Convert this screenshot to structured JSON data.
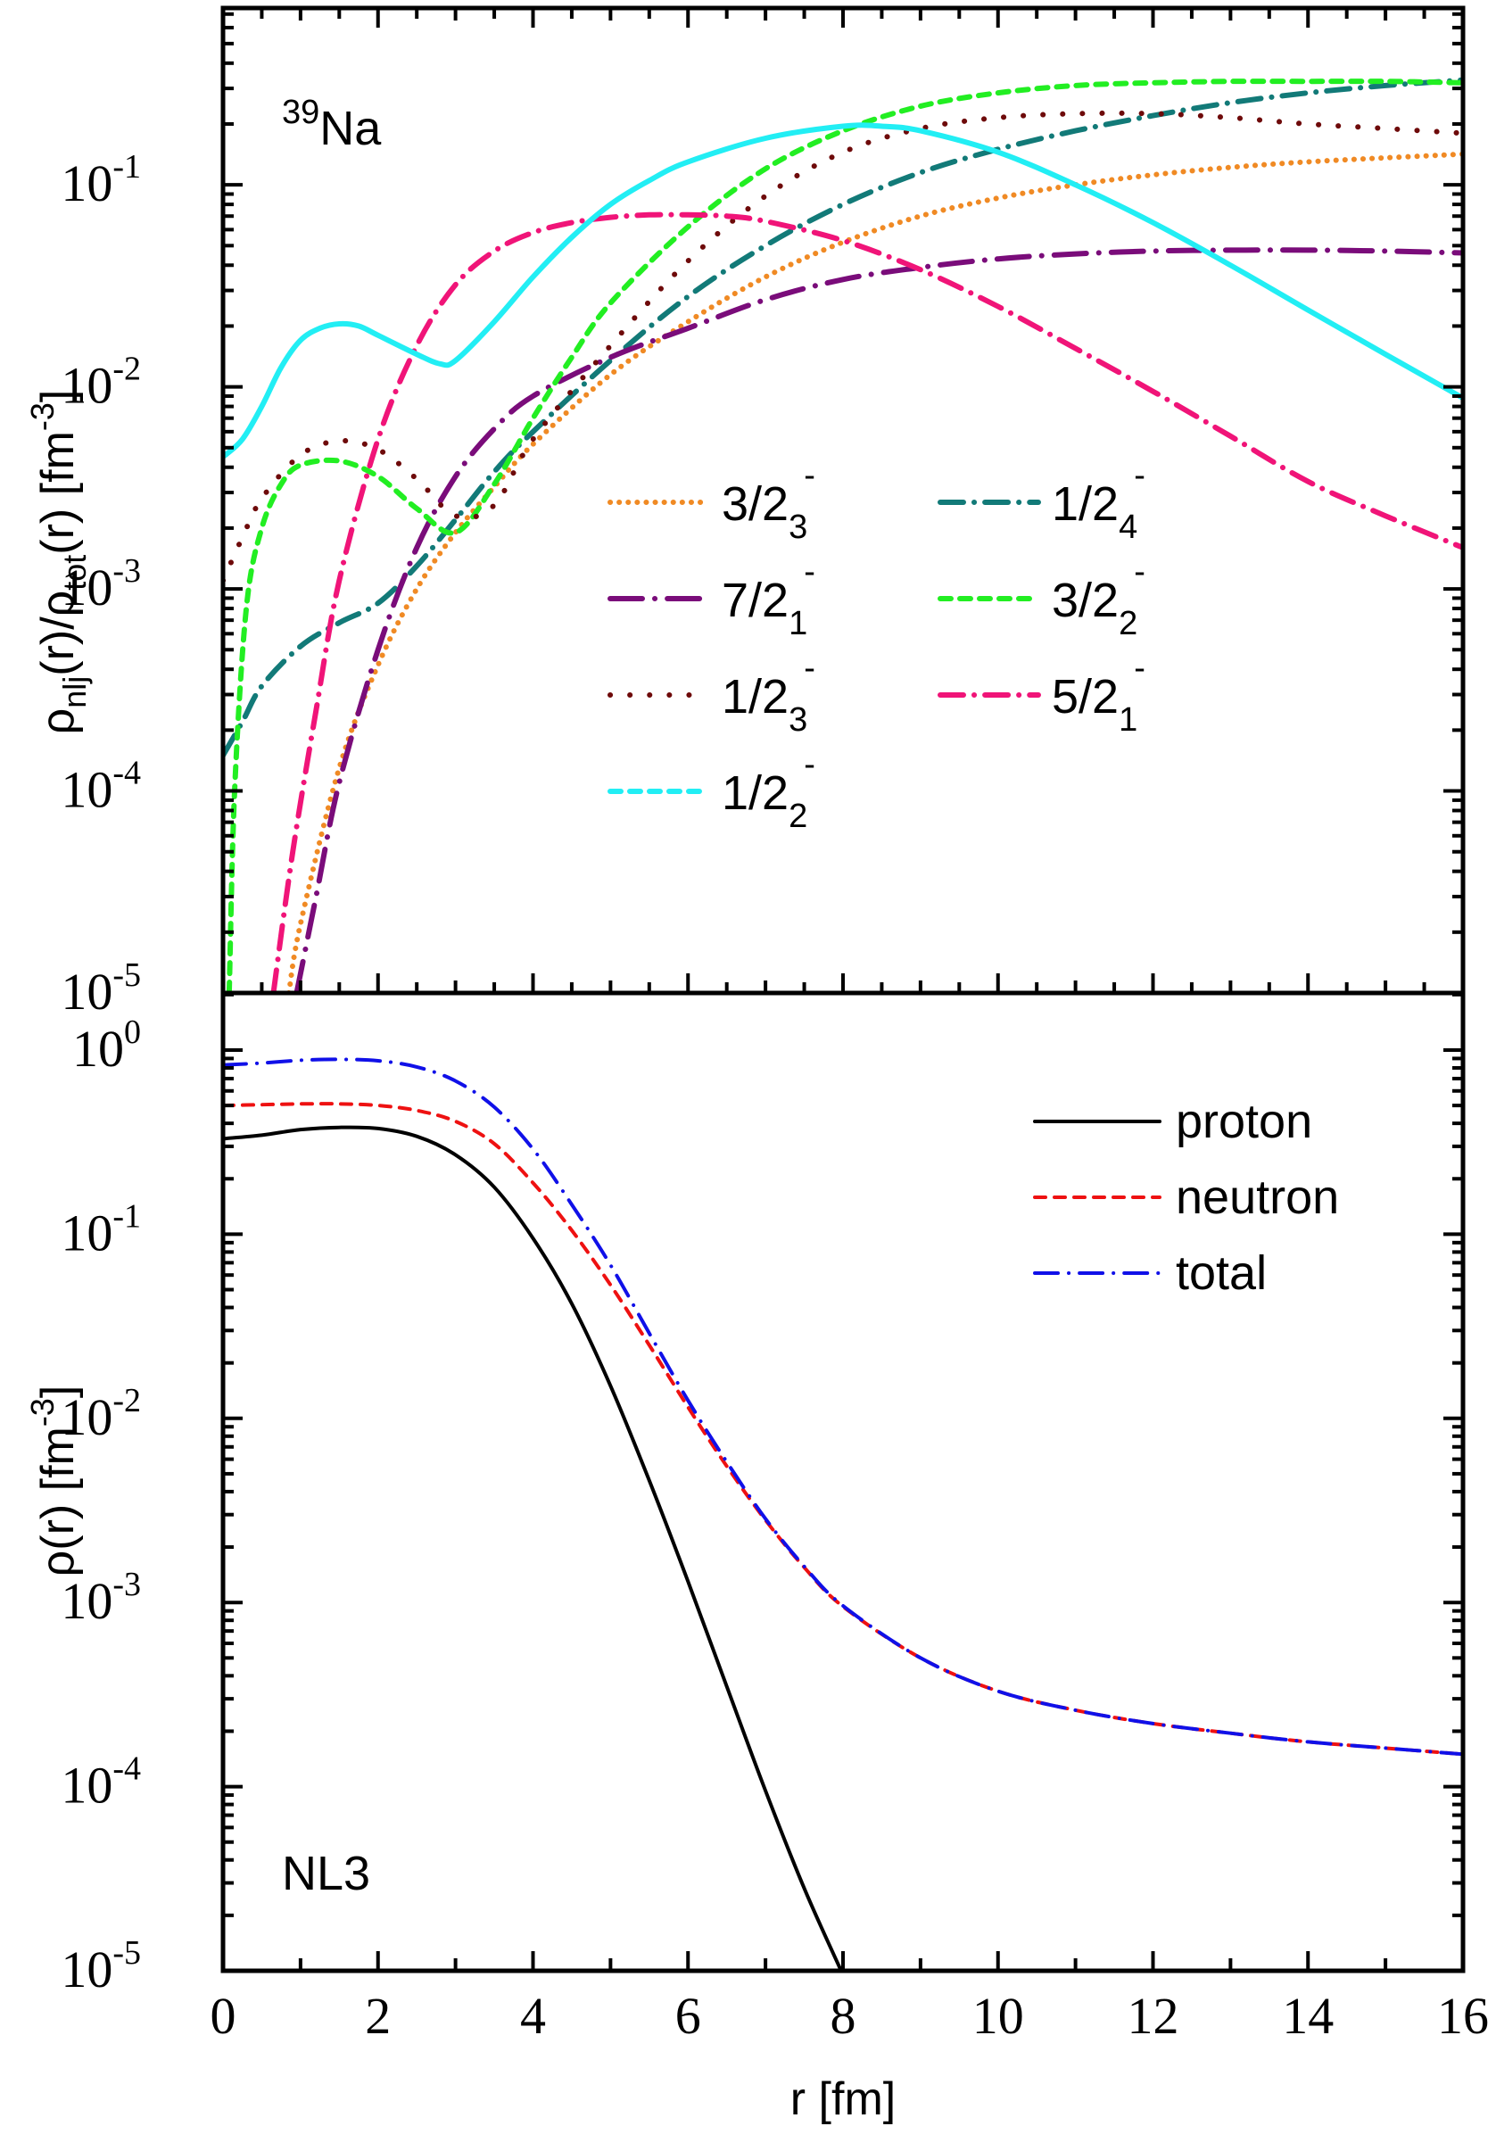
{
  "chart_data": [
    {
      "panel": "top",
      "type": "line",
      "annotation": {
        "mass_number": "39",
        "element": "Na"
      },
      "ylabel": {
        "main": "ρ",
        "sub1": "nlj",
        "mid": "(r)/ρ",
        "sub2": "tot",
        "tail": "(r) [fm",
        "sup": "-3",
        "end": "]"
      },
      "xlim": [
        0,
        16
      ],
      "ylim_log10": [
        -5,
        -0.125
      ],
      "yscale": "log",
      "y_ticks": [
        {
          "base": "10",
          "exp": "-1",
          "log": -1
        },
        {
          "base": "10",
          "exp": "-2",
          "log": -2
        },
        {
          "base": "10",
          "exp": "-3",
          "log": -3
        },
        {
          "base": "10",
          "exp": "-4",
          "log": -4
        },
        {
          "base": "10",
          "exp": "-5",
          "log": -5
        }
      ],
      "legend_placement": "center",
      "series": [
        {
          "name": "3/2_3^-",
          "label_main": "3/2",
          "label_sub": "3",
          "label_sup": "-",
          "color": "#F08A24",
          "style": "dotted",
          "legend_col": 0,
          "legend_row": 0,
          "x": [
            0.85,
            1.0,
            1.5,
            2.0,
            2.5,
            3.0,
            3.5,
            4.0,
            5.0,
            6.0,
            7.0,
            8.0,
            9.0,
            10.0,
            11.0,
            12.0,
            13.0,
            14.0,
            15.0,
            16.0
          ],
          "values": [
            1e-05,
            2.2e-05,
            0.00013,
            0.00042,
            0.001,
            0.0019,
            0.0032,
            0.0052,
            0.0115,
            0.021,
            0.035,
            0.052,
            0.07,
            0.086,
            0.1,
            0.112,
            0.122,
            0.13,
            0.136,
            0.142
          ]
        },
        {
          "name": "1/2_4^-",
          "label_main": "1/2",
          "label_sub": "4",
          "label_sup": "-",
          "color": "#127A78",
          "style": "dashdot",
          "legend_col": 1,
          "legend_row": 0,
          "x": [
            0.0,
            0.25,
            0.5,
            1.0,
            1.5,
            2.0,
            2.5,
            3.0,
            3.5,
            4.0,
            5.0,
            6.0,
            7.0,
            8.0,
            9.0,
            10.0,
            11.0,
            12.0,
            13.0,
            14.0,
            15.0,
            16.0
          ],
          "values": [
            0.00015,
            0.00022,
            0.00033,
            0.00052,
            0.00068,
            0.00085,
            0.0013,
            0.0022,
            0.0038,
            0.006,
            0.0135,
            0.028,
            0.05,
            0.08,
            0.115,
            0.15,
            0.185,
            0.22,
            0.255,
            0.285,
            0.31,
            0.33
          ]
        },
        {
          "name": "7/2_1^-",
          "label_main": "7/2",
          "label_sub": "1",
          "label_sup": "-",
          "color": "#7A0C7A",
          "style": "longdashdot",
          "legend_col": 0,
          "legend_row": 1,
          "x": [
            0.95,
            1.2,
            1.5,
            2.0,
            2.5,
            3.0,
            3.5,
            4.0,
            5.0,
            6.0,
            7.0,
            8.0,
            9.0,
            10.0,
            11.0,
            12.0,
            13.0,
            14.0,
            15.0,
            16.0
          ],
          "values": [
            1e-05,
            3e-05,
            0.00011,
            0.0005,
            0.0016,
            0.0036,
            0.0062,
            0.009,
            0.014,
            0.0195,
            0.027,
            0.034,
            0.039,
            0.043,
            0.0455,
            0.047,
            0.0475,
            0.0475,
            0.047,
            0.046
          ]
        },
        {
          "name": "3/2_2^-",
          "label_main": "3/2",
          "label_sub": "2",
          "label_sup": "-",
          "color": "#22EE22",
          "style": "dashed",
          "legend_col": 1,
          "legend_row": 1,
          "x": [
            0.08,
            0.15,
            0.3,
            0.5,
            0.75,
            1.0,
            1.5,
            2.0,
            2.5,
            3.0,
            3.5,
            4.0,
            4.5,
            5.0,
            6.0,
            7.0,
            8.0,
            9.0,
            10.0,
            11.0,
            12.0,
            13.0,
            14.0,
            15.0,
            16.0
          ],
          "values": [
            1e-05,
            0.0001,
            0.0008,
            0.002,
            0.0033,
            0.0041,
            0.0043,
            0.0036,
            0.0025,
            0.0019,
            0.0033,
            0.007,
            0.014,
            0.026,
            0.062,
            0.12,
            0.185,
            0.245,
            0.285,
            0.31,
            0.32,
            0.325,
            0.325,
            0.325,
            0.32
          ]
        },
        {
          "name": "1/2_3^-",
          "label_main": "1/2",
          "label_sub": "3",
          "label_sup": "-",
          "color": "#6E0A0A",
          "style": "sparse-dotted",
          "legend_col": 0,
          "legend_row": 2,
          "x": [
            0.0,
            0.25,
            0.5,
            1.0,
            1.5,
            2.0,
            2.5,
            3.0,
            3.5,
            4.0,
            5.0,
            6.0,
            7.0,
            8.0,
            9.0,
            10.0,
            11.0,
            12.0,
            13.0,
            14.0,
            15.0,
            16.0
          ],
          "values": [
            0.0011,
            0.0018,
            0.0028,
            0.0046,
            0.0054,
            0.0049,
            0.0035,
            0.0023,
            0.0026,
            0.0055,
            0.016,
            0.042,
            0.088,
            0.145,
            0.19,
            0.215,
            0.225,
            0.225,
            0.215,
            0.2,
            0.19,
            0.18
          ]
        },
        {
          "name": "5/2_1^-",
          "label_main": "5/2",
          "label_sub": "1",
          "label_sup": "-",
          "color": "#F01478",
          "style": "dashdot",
          "legend_col": 1,
          "legend_row": 2,
          "x": [
            0.65,
            0.9,
            1.2,
            1.5,
            2.0,
            2.5,
            3.0,
            3.5,
            4.0,
            4.5,
            5.0,
            5.5,
            6.0,
            6.5,
            7.0,
            8.0,
            9.0,
            10.0,
            11.0,
            12.0,
            13.0,
            14.0,
            15.0,
            16.0
          ],
          "values": [
            1e-05,
            5e-05,
            0.00025,
            0.0011,
            0.0055,
            0.016,
            0.032,
            0.047,
            0.058,
            0.065,
            0.069,
            0.071,
            0.071,
            0.07,
            0.066,
            0.053,
            0.038,
            0.025,
            0.0155,
            0.0095,
            0.0057,
            0.0034,
            0.0023,
            0.0016
          ]
        },
        {
          "name": "1/2_2^-",
          "label_main": "1/2",
          "label_sub": "2",
          "label_sup": "-",
          "color": "#22EEF4",
          "style": "solid",
          "legend_style": "dashed",
          "legend_col": 0,
          "legend_row": 3,
          "x": [
            0.0,
            0.25,
            0.5,
            0.75,
            1.0,
            1.25,
            1.5,
            1.75,
            2.0,
            2.5,
            2.8,
            3.0,
            3.5,
            4.0,
            4.5,
            5.0,
            5.5,
            6.0,
            7.0,
            8.0,
            8.5,
            9.0,
            10.0,
            11.0,
            12.0,
            13.0,
            14.0,
            15.0,
            16.0
          ],
          "values": [
            0.0045,
            0.0055,
            0.008,
            0.0125,
            0.017,
            0.0195,
            0.0205,
            0.02,
            0.018,
            0.0145,
            0.013,
            0.0135,
            0.021,
            0.035,
            0.055,
            0.08,
            0.105,
            0.13,
            0.17,
            0.195,
            0.195,
            0.185,
            0.145,
            0.1,
            0.065,
            0.04,
            0.024,
            0.0145,
            0.0088
          ]
        }
      ]
    },
    {
      "panel": "bottom",
      "type": "line",
      "annotation": {
        "text": "NL3"
      },
      "ylabel": {
        "main": "ρ(r) [fm",
        "sup": "-3",
        "end": "]"
      },
      "xlabel": "r [fm]",
      "xlim": [
        0,
        16
      ],
      "x_ticks": [
        "0",
        "2",
        "4",
        "6",
        "8",
        "10",
        "12",
        "14",
        "16"
      ],
      "ylim_log10": [
        -5,
        0.31
      ],
      "yscale": "log",
      "y_ticks": [
        {
          "base": "10",
          "exp": "0",
          "log": 0
        },
        {
          "base": "10",
          "exp": "-1",
          "log": -1
        },
        {
          "base": "10",
          "exp": "-2",
          "log": -2
        },
        {
          "base": "10",
          "exp": "-3",
          "log": -3
        },
        {
          "base": "10",
          "exp": "-4",
          "log": -4
        },
        {
          "base": "10",
          "exp": "-5",
          "log": -5
        }
      ],
      "legend_placement": "top-right",
      "series": [
        {
          "name": "proton",
          "color": "#000000",
          "style": "solid",
          "x": [
            0.0,
            0.5,
            1.0,
            1.5,
            2.0,
            2.5,
            3.0,
            3.5,
            4.0,
            4.5,
            5.0,
            5.5,
            6.0,
            6.5,
            7.0,
            7.5,
            8.0
          ],
          "values": [
            0.33,
            0.345,
            0.37,
            0.38,
            0.375,
            0.34,
            0.27,
            0.18,
            0.095,
            0.042,
            0.015,
            0.0046,
            0.0013,
            0.00035,
            9.5e-05,
            2.8e-05,
            9.5e-06
          ]
        },
        {
          "name": "neutron",
          "color": "#EE1111",
          "style": "dashed",
          "x": [
            0.0,
            0.5,
            1.0,
            1.5,
            2.0,
            2.5,
            3.0,
            3.5,
            4.0,
            4.5,
            5.0,
            5.5,
            6.0,
            6.5,
            7.0,
            7.5,
            8.0,
            9.0,
            10.0,
            11.0,
            12.0,
            13.0,
            14.0,
            15.0,
            16.0
          ],
          "values": [
            0.5,
            0.505,
            0.51,
            0.51,
            0.5,
            0.47,
            0.41,
            0.31,
            0.19,
            0.105,
            0.053,
            0.025,
            0.0115,
            0.0055,
            0.0028,
            0.00155,
            0.00095,
            0.0005,
            0.00033,
            0.00026,
            0.00022,
            0.000195,
            0.000175,
            0.000162,
            0.00015
          ]
        },
        {
          "name": "total",
          "color": "#1010E8",
          "style": "dashdot",
          "x": [
            0.0,
            0.5,
            1.0,
            1.5,
            2.0,
            2.5,
            3.0,
            3.5,
            4.0,
            4.5,
            5.0,
            5.5,
            6.0,
            6.5,
            7.0,
            7.5,
            8.0,
            9.0,
            10.0,
            11.0,
            12.0,
            13.0,
            14.0,
            15.0,
            16.0
          ],
          "values": [
            0.83,
            0.85,
            0.88,
            0.89,
            0.875,
            0.81,
            0.68,
            0.49,
            0.29,
            0.145,
            0.068,
            0.029,
            0.0125,
            0.0058,
            0.00285,
            0.00157,
            0.00096,
            0.0005,
            0.00033,
            0.00026,
            0.00022,
            0.000195,
            0.000175,
            0.000162,
            0.00015
          ]
        }
      ]
    }
  ]
}
